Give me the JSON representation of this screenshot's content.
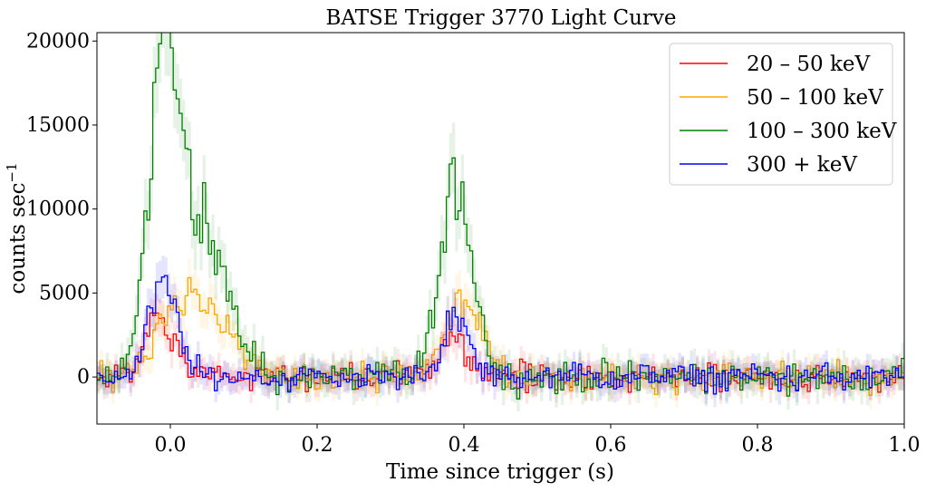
{
  "chart_data": {
    "type": "line",
    "style": "step",
    "title": "BATSE Trigger 3770 Light Curve",
    "xlabel": "Time since trigger (s)",
    "ylabel": "counts sec",
    "ylabel_superscript": "−1",
    "xlim": [
      -0.1,
      1.0
    ],
    "ylim": [
      -2800,
      20500
    ],
    "xticks": [
      0.0,
      0.2,
      0.4,
      0.6,
      0.8,
      1.0
    ],
    "xtick_labels": [
      "0.0",
      "0.2",
      "0.4",
      "0.6",
      "0.8",
      "1.0"
    ],
    "yticks": [
      0,
      5000,
      10000,
      15000,
      20000
    ],
    "ytick_labels": [
      "0",
      "5000",
      "10000",
      "15000",
      "20000"
    ],
    "grid": false,
    "legend_position": "top-right",
    "bin_width": 0.004,
    "series": [
      {
        "name": "20 – 50 keV",
        "color": "#ff0000",
        "noise_amplitude": 700,
        "baseline": 0,
        "pulses": [
          {
            "center": -0.015,
            "peak": 3500,
            "width": 0.018
          },
          {
            "center": 0.385,
            "peak": 2800,
            "width": 0.015
          }
        ]
      },
      {
        "name": "50 – 100 keV",
        "color": "#ffa500",
        "noise_amplitude": 700,
        "baseline": 0,
        "pulses": [
          {
            "center": 0.03,
            "peak": 5000,
            "width": 0.04
          },
          {
            "center": 0.4,
            "peak": 4300,
            "width": 0.025
          }
        ]
      },
      {
        "name": "100 – 300 keV",
        "color": "#008000",
        "noise_amplitude": 800,
        "baseline": 0,
        "pulses": [
          {
            "center": -0.01,
            "peak": 17500,
            "width": 0.02
          },
          {
            "center": 0.04,
            "peak": 9000,
            "width": 0.035
          },
          {
            "center": 0.39,
            "peak": 11500,
            "width": 0.022
          }
        ]
      },
      {
        "name": "300 + keV",
        "color": "#0000ff",
        "noise_amplitude": 700,
        "baseline": 0,
        "pulses": [
          {
            "center": -0.01,
            "peak": 5500,
            "width": 0.02
          },
          {
            "center": 0.39,
            "peak": 3400,
            "width": 0.018
          }
        ]
      }
    ]
  }
}
